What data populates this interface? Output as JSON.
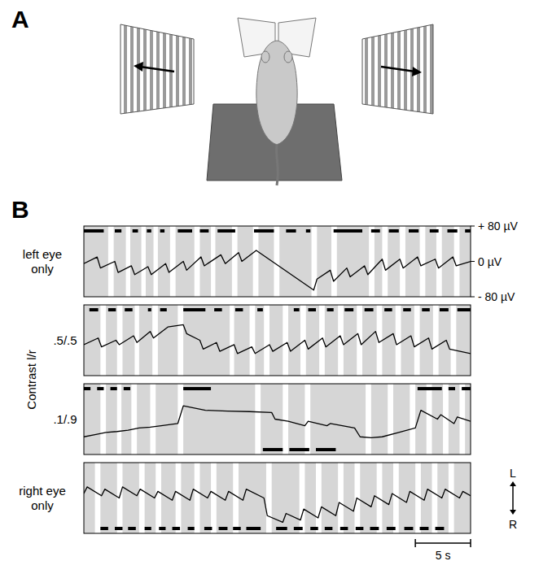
{
  "panel_a": {
    "letter": "A"
  },
  "panel_b": {
    "letter": "B",
    "group_label": "Contrast l/r",
    "scale_bar": {
      "length": 5,
      "label": "5 s"
    },
    "direction": {
      "up": "L",
      "down": "R"
    }
  },
  "chart_data": [
    {
      "type": "line",
      "label": "left eye only",
      "color": "#000000",
      "xlim": [
        0,
        35
      ],
      "ylim": [
        -80,
        80
      ],
      "tick_labels": "y",
      "yticks": [
        {
          "value": 80,
          "label": "+ 80 µV"
        },
        {
          "value": 0,
          "label": "0 µV"
        },
        {
          "value": -80,
          "label": "- 80 µV"
        }
      ],
      "x": [
        0,
        1.2,
        1.5,
        2.8,
        3.1,
        4.3,
        4.6,
        5.8,
        6.1,
        7.4,
        7.7,
        9.0,
        9.3,
        10.6,
        10.9,
        12.4,
        12.8,
        14.0,
        14.3,
        15.6,
        20.8,
        21.1,
        22.3,
        22.6,
        23.8,
        24.1,
        25.4,
        25.7,
        27.0,
        27.3,
        28.6,
        28.9,
        30.2,
        30.5,
        31.8,
        32.1,
        33.4,
        33.7,
        35
      ],
      "values": [
        -5,
        10,
        -15,
        0,
        -25,
        -10,
        -30,
        -12,
        -30,
        -5,
        -25,
        0,
        -20,
        10,
        -10,
        15,
        -5,
        20,
        0,
        25,
        -65,
        -40,
        -20,
        -45,
        -15,
        -35,
        -10,
        -30,
        5,
        -20,
        5,
        -15,
        10,
        -10,
        5,
        -15,
        10,
        -10,
        0
      ],
      "shaded": [
        [
          0,
          2.2
        ],
        [
          2.7,
          3.8
        ],
        [
          4.2,
          5.2
        ],
        [
          5.6,
          6.3
        ],
        [
          6.7,
          7.8
        ],
        [
          8.3,
          10.0
        ],
        [
          10.5,
          11.5
        ],
        [
          11.9,
          13.4
        ],
        [
          13.9,
          15.3
        ],
        [
          15.8,
          17.2
        ],
        [
          17.7,
          20.6
        ],
        [
          21.1,
          22.4
        ],
        [
          22.9,
          25.8
        ],
        [
          26.3,
          27.0
        ],
        [
          27.5,
          28.6
        ],
        [
          29.1,
          30.4
        ],
        [
          30.9,
          31.9
        ],
        [
          32.4,
          33.5
        ],
        [
          34.0,
          35
        ]
      ],
      "bars_top": [
        [
          0,
          1.8
        ],
        [
          2.8,
          3.4
        ],
        [
          4.4,
          4.9
        ],
        [
          5.7,
          6.1
        ],
        [
          6.9,
          7.3
        ],
        [
          8.5,
          9.8
        ],
        [
          10.5,
          11.3
        ],
        [
          12.1,
          13.7
        ],
        [
          15.4,
          17.2
        ],
        [
          18.3,
          19.2
        ],
        [
          20.1,
          20.5
        ],
        [
          22.6,
          25.2
        ],
        [
          26.0,
          26.8
        ],
        [
          27.6,
          28.5
        ],
        [
          29.4,
          30.3
        ],
        [
          31.3,
          32.1
        ],
        [
          32.9,
          33.8
        ],
        [
          34.5,
          35
        ]
      ],
      "bars_bottom": []
    },
    {
      "type": "line",
      "label": ".5/.5",
      "color": "#000000",
      "xlim": [
        0,
        35
      ],
      "ylim": [
        -80,
        80
      ],
      "tick_labels": false,
      "x": [
        0,
        1.3,
        1.6,
        2.9,
        3.2,
        4.5,
        4.8,
        6.0,
        6.3,
        7.6,
        9.0,
        9.3,
        10.5,
        10.8,
        12.0,
        12.3,
        13.6,
        13.9,
        15.2,
        15.5,
        16.8,
        17.1,
        18.4,
        18.7,
        20.0,
        20.3,
        21.6,
        21.9,
        23.2,
        23.5,
        24.8,
        25.1,
        26.4,
        26.7,
        28.0,
        28.3,
        29.6,
        29.9,
        31.2,
        31.5,
        32.8,
        33.1,
        35
      ],
      "values": [
        -10,
        5,
        -15,
        0,
        -10,
        10,
        -5,
        20,
        5,
        30,
        35,
        15,
        0,
        -20,
        -5,
        -25,
        -10,
        -30,
        -15,
        -30,
        -10,
        -25,
        -5,
        -25,
        0,
        -20,
        5,
        -15,
        10,
        -10,
        15,
        -10,
        20,
        -5,
        15,
        -10,
        10,
        -15,
        5,
        -20,
        0,
        -20,
        -30
      ],
      "shaded": [
        [
          0,
          1.5
        ],
        [
          2.0,
          3.0
        ],
        [
          3.5,
          4.6
        ],
        [
          5.0,
          6.2
        ],
        [
          6.7,
          8.5
        ],
        [
          9.0,
          13.2
        ],
        [
          13.6,
          15.0
        ],
        [
          15.5,
          16.3
        ],
        [
          16.8,
          18.0
        ],
        [
          18.5,
          19.6
        ],
        [
          20.1,
          21.3
        ],
        [
          21.8,
          23.0
        ],
        [
          23.5,
          24.7
        ],
        [
          25.2,
          26.5
        ],
        [
          27.0,
          28.2
        ],
        [
          28.7,
          29.9
        ],
        [
          30.4,
          31.6
        ],
        [
          32.1,
          33.2
        ],
        [
          33.7,
          35
        ]
      ],
      "bars_top": [
        [
          0.5,
          1.3
        ],
        [
          2.2,
          2.9
        ],
        [
          3.7,
          4.4
        ],
        [
          5.8,
          6.1
        ],
        [
          6.9,
          7.5
        ],
        [
          9.0,
          11.0
        ],
        [
          11.8,
          12.5
        ],
        [
          13.7,
          14.4
        ],
        [
          15.7,
          16.2
        ],
        [
          19.0,
          19.5
        ],
        [
          20.3,
          21.0
        ],
        [
          22.0,
          22.6
        ],
        [
          23.6,
          24.4
        ],
        [
          25.4,
          26.2
        ],
        [
          27.2,
          27.9
        ],
        [
          28.9,
          29.6
        ],
        [
          30.6,
          31.3
        ],
        [
          32.2,
          33.0
        ],
        [
          33.8,
          35
        ]
      ],
      "bars_bottom": []
    },
    {
      "type": "line",
      "label": ".1/.9",
      "color": "#000000",
      "xlim": [
        0,
        35
      ],
      "ylim": [
        -80,
        80
      ],
      "tick_labels": false,
      "x": [
        0,
        1.0,
        2.0,
        3.0,
        4.0,
        5.0,
        6.0,
        7.0,
        8.5,
        9.0,
        11.0,
        13.0,
        15.0,
        17.0,
        17.3,
        18.5,
        20.0,
        20.3,
        22.0,
        22.3,
        24.5,
        25.0,
        26.0,
        27.0,
        28.5,
        30.0,
        30.5,
        32.0,
        32.3,
        33.5,
        33.8,
        35
      ],
      "values": [
        -40,
        -35,
        -30,
        -28,
        -25,
        -20,
        -18,
        -15,
        -10,
        30,
        20,
        18,
        17,
        15,
        0,
        -5,
        -15,
        -5,
        -15,
        -10,
        -20,
        -40,
        -42,
        -40,
        -30,
        -20,
        20,
        0,
        10,
        -10,
        5,
        -5
      ],
      "shaded": [
        [
          0,
          1.5
        ],
        [
          2.0,
          3.0
        ],
        [
          3.4,
          4.3
        ],
        [
          4.8,
          6.0
        ],
        [
          6.5,
          8.5
        ],
        [
          9.0,
          15.5
        ],
        [
          16.0,
          18.0
        ],
        [
          18.5,
          20.0
        ],
        [
          20.5,
          25.5
        ],
        [
          26.0,
          27.5
        ],
        [
          28.0,
          29.5
        ],
        [
          30.0,
          31.0
        ],
        [
          31.5,
          32.5
        ],
        [
          33.0,
          34.0
        ],
        [
          34.5,
          35
        ]
      ],
      "bars_top": [
        [
          0,
          0.6
        ],
        [
          1.2,
          1.8
        ],
        [
          2.4,
          3.0
        ],
        [
          3.6,
          4.2
        ],
        [
          9.0,
          11.5
        ],
        [
          30.2,
          32.4
        ],
        [
          33.0,
          33.6
        ],
        [
          34.2,
          35
        ]
      ],
      "bars_bottom": [
        [
          16.2,
          18.0
        ],
        [
          18.6,
          20.4
        ],
        [
          21.0,
          22.8
        ]
      ]
    },
    {
      "type": "line",
      "label": "right eye only",
      "color": "#000000",
      "xlim": [
        0,
        35
      ],
      "ylim": [
        -80,
        80
      ],
      "tick_labels": false,
      "x": [
        0,
        0.3,
        1.6,
        1.9,
        3.2,
        3.5,
        4.8,
        5.1,
        6.4,
        6.7,
        8.0,
        8.3,
        9.6,
        9.9,
        11.2,
        11.5,
        12.8,
        13.1,
        14.4,
        14.7,
        16.3,
        16.6,
        18.0,
        18.3,
        19.6,
        19.9,
        21.2,
        21.5,
        22.8,
        23.1,
        24.4,
        24.7,
        26.0,
        26.3,
        27.6,
        27.9,
        29.2,
        29.5,
        30.8,
        31.1,
        32.4,
        32.7,
        34.0,
        34.3,
        35
      ],
      "values": [
        10,
        25,
        5,
        20,
        0,
        25,
        5,
        20,
        0,
        15,
        -5,
        15,
        -5,
        20,
        0,
        15,
        -5,
        15,
        -5,
        20,
        0,
        -40,
        -55,
        -35,
        -50,
        -25,
        -45,
        -20,
        -40,
        -10,
        -30,
        0,
        -20,
        5,
        -15,
        10,
        -10,
        15,
        -5,
        20,
        0,
        20,
        0,
        15,
        5
      ],
      "shaded": [
        [
          0,
          1.0
        ],
        [
          1.5,
          3.0
        ],
        [
          3.5,
          5.0
        ],
        [
          5.5,
          6.5
        ],
        [
          7.0,
          8.3
        ],
        [
          8.8,
          10.0
        ],
        [
          10.5,
          11.5
        ],
        [
          12.0,
          13.5
        ],
        [
          14.0,
          16.5
        ],
        [
          17.0,
          19.5
        ],
        [
          20.0,
          21.0
        ],
        [
          21.5,
          23.0
        ],
        [
          23.5,
          24.5
        ],
        [
          25.0,
          26.5
        ],
        [
          27.0,
          28.0
        ],
        [
          28.5,
          30.0
        ],
        [
          30.5,
          31.5
        ],
        [
          32.0,
          33.0
        ],
        [
          33.5,
          35
        ]
      ],
      "bars_top": [],
      "bars_bottom": [
        [
          1.5,
          2.2
        ],
        [
          2.8,
          3.5
        ],
        [
          4.0,
          4.7
        ],
        [
          5.5,
          6.1
        ],
        [
          6.8,
          7.4
        ],
        [
          8.0,
          8.7
        ],
        [
          9.4,
          10.0
        ],
        [
          10.9,
          11.6
        ],
        [
          12.2,
          13.0
        ],
        [
          13.5,
          14.2
        ],
        [
          14.7,
          16.0
        ],
        [
          17.4,
          18.4
        ],
        [
          19.0,
          19.8
        ],
        [
          20.5,
          21.2
        ],
        [
          21.8,
          22.5
        ],
        [
          23.2,
          23.9
        ],
        [
          24.6,
          25.3
        ],
        [
          25.9,
          26.7
        ],
        [
          27.4,
          28.2
        ],
        [
          29.0,
          29.8
        ],
        [
          30.4,
          31.2
        ],
        [
          31.8,
          32.6
        ]
      ]
    }
  ]
}
